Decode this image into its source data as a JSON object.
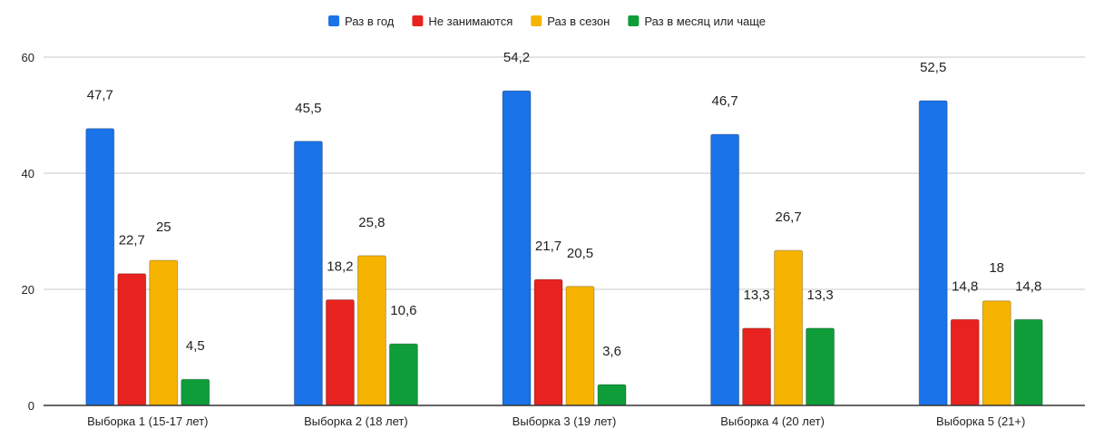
{
  "chart_data": {
    "type": "bar",
    "title": "",
    "xlabel": "",
    "ylabel": "",
    "ylim": [
      0,
      60
    ],
    "yticks": [
      0,
      20,
      40,
      60
    ],
    "grid": true,
    "legend_position": "top",
    "categories": [
      "Выборка 1 (15-17 лет)",
      "Выборка 2 (18 лет)",
      "Выборка 3 (19 лет)",
      "Выборка 4 (20 лет)",
      "Выборка 5 (21+)"
    ],
    "series": [
      {
        "name": "Раз в год",
        "color": "#1a73e8",
        "values": [
          47.7,
          45.5,
          54.2,
          46.7,
          52.5
        ],
        "labels": [
          "47,7",
          "45,5",
          "54,2",
          "46,7",
          "52,5"
        ]
      },
      {
        "name": "Не занимаются",
        "color": "#e8231f",
        "values": [
          22.7,
          18.2,
          21.7,
          13.3,
          14.8
        ],
        "labels": [
          "22,7",
          "18,2",
          "21,7",
          "13,3",
          "14,8"
        ]
      },
      {
        "name": "Раз в сезон",
        "color": "#f6b400",
        "values": [
          25,
          25.8,
          20.5,
          26.7,
          18
        ],
        "labels": [
          "25",
          "25,8",
          "20,5",
          "26,7",
          "18"
        ]
      },
      {
        "name": "Раз в месяц или чаще",
        "color": "#0f9d3a",
        "values": [
          4.5,
          10.6,
          3.6,
          13.3,
          14.8
        ],
        "labels": [
          "4,5",
          "10,6",
          "3,6",
          "13,3",
          "14,8"
        ]
      }
    ]
  }
}
